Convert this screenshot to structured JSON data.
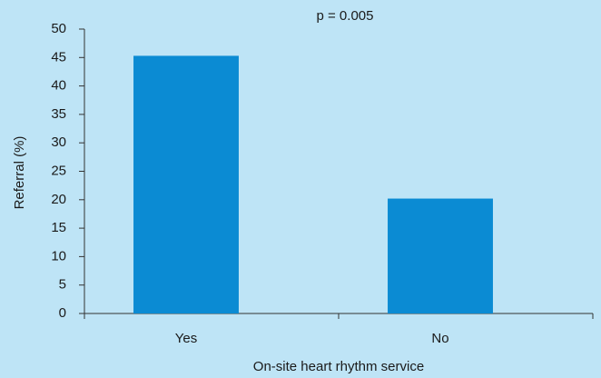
{
  "chart_data": {
    "type": "bar",
    "annotation": "p = 0.005",
    "x_label": "On-site heart rhythm service",
    "y_label": "Referral (%)",
    "categories": [
      "Yes",
      "No"
    ],
    "values": [
      45.3,
      20.2
    ],
    "color": "#0b8bd3",
    "background": "#bee4f6",
    "ylim": [
      0,
      50
    ],
    "yticks": [
      0,
      5,
      10,
      15,
      20,
      25,
      30,
      35,
      40,
      45,
      50
    ],
    "grid": false
  }
}
